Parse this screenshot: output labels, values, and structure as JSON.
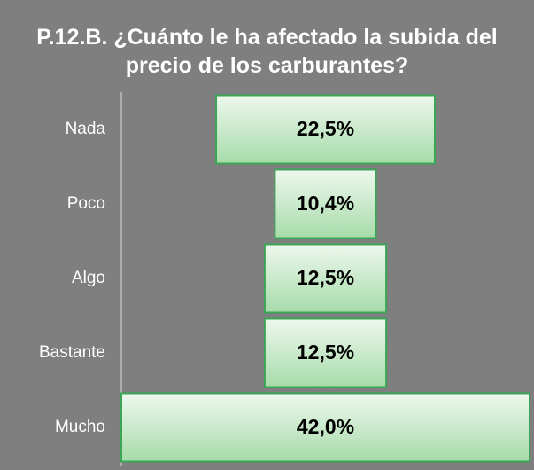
{
  "chart_data": {
    "type": "bar",
    "title": "P.12.B. ¿Cuánto le ha afectado la subida del precio de los carburantes?",
    "categories": [
      "Nada",
      "Poco",
      "Algo",
      "Bastante",
      "Mucho"
    ],
    "values": [
      22.5,
      10.4,
      12.5,
      12.5,
      42.0
    ],
    "value_labels": [
      "22,5%",
      "10,4%",
      "12,5%",
      "12,5%",
      "42,0%"
    ],
    "color": "#3aa655"
  }
}
